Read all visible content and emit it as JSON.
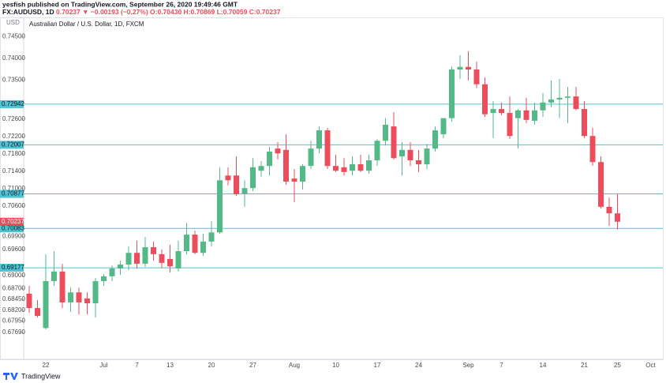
{
  "header": {
    "publisher": "yesfish published on TradingView.com, September 26, 2020 19:49:46 GMT",
    "symbol": "FX:AUDUSD, 1D",
    "quote": "0.70237 ▼ −0.00193 (−0.27%) O:0.70430 H:0.70869 L:0.70059 C:0.70237"
  },
  "footer": "TradingView",
  "chart_data": {
    "type": "candlestick",
    "title": "Australian Dollar / U.S. Dollar, 1D, FXCM",
    "y_axis_label": "USD",
    "up_color": "#53b987",
    "down_color": "#eb4d5c",
    "line_color": "#4fc3d2",
    "grid": false,
    "ylim": [
      0.6707,
      0.7494
    ],
    "yticks": [
      {
        "value": 0.745,
        "label": "0.74500"
      },
      {
        "value": 0.74,
        "label": "0.74000"
      },
      {
        "value": 0.735,
        "label": "0.73500"
      },
      {
        "value": 0.726,
        "label": "0.72600"
      },
      {
        "value": 0.722,
        "label": "0.72200"
      },
      {
        "value": 0.718,
        "label": "0.71800"
      },
      {
        "value": 0.714,
        "label": "0.71400"
      },
      {
        "value": 0.71,
        "label": "0.71000"
      },
      {
        "value": 0.706,
        "label": "0.70600"
      },
      {
        "value": 0.699,
        "label": "0.69900"
      },
      {
        "value": 0.696,
        "label": "0.69600"
      },
      {
        "value": 0.69,
        "label": "0.69000"
      },
      {
        "value": 0.687,
        "label": "0.68700"
      },
      {
        "value": 0.6845,
        "label": "0.68450"
      },
      {
        "value": 0.682,
        "label": "0.68200"
      },
      {
        "value": 0.6795,
        "label": "0.67950"
      },
      {
        "value": 0.6769,
        "label": "0.67690"
      }
    ],
    "price_lines": [
      0.72942,
      0.72007,
      0.70877,
      0.70083,
      0.69177
    ],
    "categories": [
      null,
      null,
      "22",
      null,
      null,
      null,
      null,
      null,
      null,
      "Jul",
      null,
      null,
      null,
      "7",
      null,
      null,
      null,
      "13",
      null,
      null,
      null,
      null,
      "20",
      null,
      null,
      null,
      null,
      "27",
      null,
      null,
      null,
      null,
      "Aug",
      null,
      null,
      null,
      null,
      "10",
      null,
      null,
      null,
      null,
      "17",
      null,
      null,
      null,
      null,
      "24",
      null,
      null,
      null,
      null,
      null,
      "Sep",
      null,
      null,
      null,
      "7",
      null,
      null,
      null,
      null,
      "14",
      null,
      null,
      null,
      null,
      "21",
      null,
      null,
      null,
      "25",
      null,
      null,
      null,
      "Oct"
    ],
    "open": [
      0.6858,
      0.6825,
      0.6779,
      0.6887,
      0.6909,
      0.6838,
      0.6861,
      0.6847,
      0.6836,
      0.6887,
      0.6898,
      0.6916,
      0.6925,
      0.6952,
      0.6927,
      0.6965,
      0.6949,
      0.6938,
      0.6916,
      0.6956,
      0.6994,
      0.6952,
      0.6978,
      0.6999,
      0.713,
      0.713,
      0.7087,
      0.7101,
      0.7141,
      0.7152,
      0.7192,
      0.7189,
      0.7123,
      0.7116,
      0.7152,
      0.7192,
      0.7234,
      0.7152,
      0.7149,
      0.7141,
      0.7156,
      0.7141,
      0.7165,
      0.721,
      0.7243,
      0.7174,
      0.7189,
      0.7165,
      0.7156,
      0.7192,
      0.7225,
      0.7262,
      0.7374,
      0.738,
      0.7374,
      0.734,
      0.7274,
      0.7283,
      0.7274,
      0.7262,
      0.728,
      0.7256,
      0.728,
      0.7298,
      0.7305,
      0.7309,
      0.7312,
      0.7283,
      0.7221,
      0.7161,
      0.7058,
      0.7043,
      null,
      null,
      null,
      null
    ],
    "high": [
      0.6876,
      0.6843,
      0.6949,
      0.6956,
      0.6927,
      0.6872,
      0.6872,
      0.6861,
      0.6894,
      0.6903,
      0.6923,
      0.6934,
      0.6967,
      0.698,
      0.6989,
      0.6978,
      0.696,
      0.6971,
      0.698,
      0.7021,
      0.7003,
      0.6996,
      0.7025,
      0.7149,
      0.7149,
      0.7174,
      0.7119,
      0.717,
      0.7163,
      0.7196,
      0.7207,
      0.7225,
      0.7145,
      0.7156,
      0.721,
      0.7243,
      0.724,
      0.7178,
      0.717,
      0.7174,
      0.7178,
      0.7178,
      0.7214,
      0.7262,
      0.7276,
      0.7207,
      0.7207,
      0.7189,
      0.7203,
      0.7243,
      0.7262,
      0.7381,
      0.7407,
      0.7416,
      0.7392,
      0.7356,
      0.7301,
      0.7298,
      0.7312,
      0.7283,
      0.7309,
      0.7298,
      0.732,
      0.7349,
      0.7352,
      0.7334,
      0.7334,
      0.7301,
      0.724,
      0.7174,
      0.7079,
      0.70869,
      null,
      null,
      null,
      null
    ],
    "low": [
      0.6814,
      0.6803,
      0.6776,
      0.6876,
      0.6825,
      0.6816,
      0.681,
      0.681,
      0.6803,
      0.6876,
      0.6887,
      0.6901,
      0.6912,
      0.6916,
      0.692,
      0.6934,
      0.6916,
      0.6907,
      0.6909,
      0.6949,
      0.6949,
      0.6945,
      0.6967,
      0.6996,
      0.7107,
      0.7083,
      0.7058,
      0.7094,
      0.7127,
      0.713,
      0.7167,
      0.7109,
      0.7069,
      0.7098,
      0.7145,
      0.7181,
      0.7145,
      0.7138,
      0.713,
      0.713,
      0.7138,
      0.7134,
      0.7152,
      0.7199,
      0.7167,
      0.713,
      0.7152,
      0.7138,
      0.7145,
      0.7185,
      0.7216,
      0.7254,
      0.7352,
      0.7349,
      0.7331,
      0.7265,
      0.7216,
      0.7269,
      0.7214,
      0.7192,
      0.7251,
      0.7247,
      0.7265,
      0.7287,
      0.7262,
      0.7251,
      0.728,
      0.7216,
      0.7152,
      0.7054,
      0.7014,
      0.70059,
      null,
      null,
      null,
      null
    ],
    "close": [
      0.6825,
      0.6807,
      0.6887,
      0.6909,
      0.6838,
      0.6861,
      0.6838,
      0.6836,
      0.6887,
      0.6898,
      0.6916,
      0.6925,
      0.6952,
      0.6927,
      0.6965,
      0.6949,
      0.6929,
      0.6921,
      0.6956,
      0.6994,
      0.6952,
      0.6978,
      0.6999,
      0.7119,
      0.7119,
      0.7087,
      0.7101,
      0.7149,
      0.7152,
      0.7185,
      0.7181,
      0.7116,
      0.7116,
      0.7152,
      0.7192,
      0.7234,
      0.7152,
      0.7141,
      0.7138,
      0.7156,
      0.7141,
      0.7165,
      0.721,
      0.7247,
      0.717,
      0.7189,
      0.7165,
      0.7156,
      0.7192,
      0.7234,
      0.7262,
      0.7374,
      0.738,
      0.7374,
      0.734,
      0.7271,
      0.7283,
      0.7274,
      0.7221,
      0.728,
      0.7258,
      0.728,
      0.7298,
      0.7305,
      0.7309,
      0.7312,
      0.7283,
      0.7221,
      0.7161,
      0.7058,
      0.7043,
      0.70237,
      null,
      null,
      null,
      null
    ]
  }
}
